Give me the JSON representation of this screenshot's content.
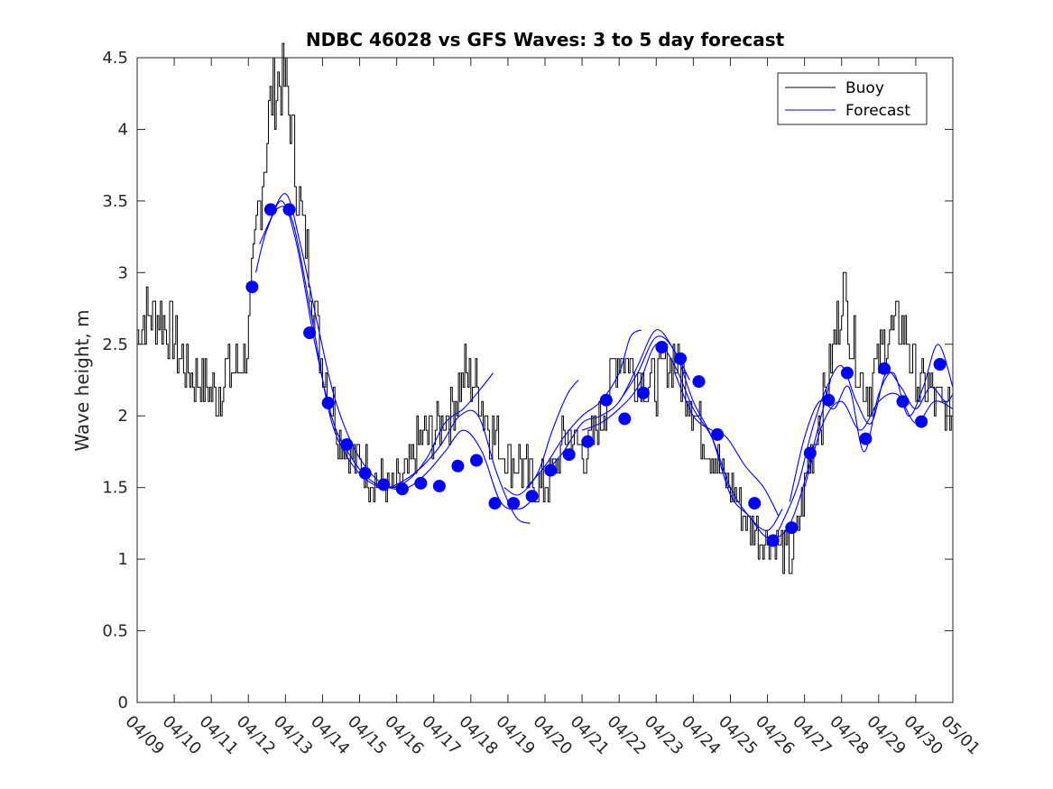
{
  "chart_data": {
    "type": "line",
    "title": "NDBC 46028 vs GFS Waves: 3 to 5 day forecast",
    "xlabel": "",
    "ylabel": "Wave height, m",
    "xlim": [
      "04/09",
      "05/01"
    ],
    "ylim": [
      0,
      4.5
    ],
    "x_ticks": [
      "04/09",
      "04/10",
      "04/11",
      "04/12",
      "04/13",
      "04/14",
      "04/15",
      "04/16",
      "04/17",
      "04/18",
      "04/19",
      "04/20",
      "04/21",
      "04/22",
      "04/23",
      "04/24",
      "04/25",
      "04/26",
      "04/27",
      "04/28",
      "04/29",
      "04/30",
      "05/01"
    ],
    "y_ticks": [
      "0",
      "0.5",
      "1",
      "1.5",
      "2",
      "2.5",
      "3",
      "3.5",
      "4",
      "4.5"
    ],
    "legend": {
      "position": "top-right",
      "entries": [
        {
          "label": "Buoy",
          "color": "#000000"
        },
        {
          "label": "Forecast",
          "color": "#0000ff"
        }
      ]
    },
    "colors": {
      "buoy": "#000000",
      "forecast": "#0000ff"
    },
    "x_unit_note_days_from": "04/09",
    "buoy_envelope": [
      [
        0.0,
        2.6
      ],
      [
        0.3,
        2.7
      ],
      [
        0.6,
        2.7
      ],
      [
        0.9,
        2.6
      ],
      [
        1.2,
        2.4
      ],
      [
        1.6,
        2.25
      ],
      [
        2.0,
        2.2
      ],
      [
        2.2,
        2.15
      ],
      [
        2.4,
        2.3
      ],
      [
        2.6,
        2.3
      ],
      [
        2.9,
        2.4
      ],
      [
        3.0,
        2.5
      ],
      [
        3.1,
        2.8
      ],
      [
        3.25,
        3.3
      ],
      [
        3.4,
        3.6
      ],
      [
        3.55,
        4.0
      ],
      [
        3.7,
        4.25
      ],
      [
        3.9,
        4.35
      ],
      [
        4.05,
        4.3
      ],
      [
        4.2,
        4.0
      ],
      [
        4.35,
        3.6
      ],
      [
        4.5,
        3.3
      ],
      [
        4.65,
        3.1
      ],
      [
        4.8,
        2.8
      ],
      [
        4.95,
        2.5
      ],
      [
        5.1,
        2.3
      ],
      [
        5.3,
        2.1
      ],
      [
        5.5,
        1.9
      ],
      [
        5.7,
        1.75
      ],
      [
        5.9,
        1.7
      ],
      [
        6.1,
        1.65
      ],
      [
        6.3,
        1.6
      ],
      [
        6.5,
        1.55
      ],
      [
        6.7,
        1.5
      ],
      [
        6.9,
        1.45
      ],
      [
        7.1,
        1.5
      ],
      [
        7.3,
        1.6
      ],
      [
        7.5,
        1.75
      ],
      [
        7.7,
        1.85
      ],
      [
        7.9,
        1.85
      ],
      [
        8.1,
        1.9
      ],
      [
        8.3,
        2.0
      ],
      [
        8.5,
        2.05
      ],
      [
        8.7,
        2.2
      ],
      [
        8.9,
        2.3
      ],
      [
        9.1,
        2.25
      ],
      [
        9.3,
        2.1
      ],
      [
        9.5,
        1.95
      ],
      [
        9.7,
        1.85
      ],
      [
        9.9,
        1.75
      ],
      [
        10.1,
        1.7
      ],
      [
        10.3,
        1.7
      ],
      [
        10.5,
        1.6
      ],
      [
        10.7,
        1.55
      ],
      [
        10.9,
        1.5
      ],
      [
        11.1,
        1.55
      ],
      [
        11.3,
        1.65
      ],
      [
        11.5,
        1.8
      ],
      [
        11.7,
        1.85
      ],
      [
        11.9,
        1.8
      ],
      [
        12.1,
        1.75
      ],
      [
        12.3,
        1.8
      ],
      [
        12.5,
        1.95
      ],
      [
        12.7,
        2.15
      ],
      [
        12.9,
        2.35
      ],
      [
        13.1,
        2.45
      ],
      [
        13.3,
        2.4
      ],
      [
        13.5,
        2.3
      ],
      [
        13.7,
        2.25
      ],
      [
        13.9,
        2.2
      ],
      [
        14.1,
        2.25
      ],
      [
        14.3,
        2.35
      ],
      [
        14.5,
        2.4
      ],
      [
        14.7,
        2.3
      ],
      [
        14.9,
        2.2
      ],
      [
        15.1,
        2.0
      ],
      [
        15.3,
        1.85
      ],
      [
        15.5,
        1.75
      ],
      [
        15.7,
        1.7
      ],
      [
        15.9,
        1.55
      ],
      [
        16.1,
        1.45
      ],
      [
        16.3,
        1.35
      ],
      [
        16.5,
        1.25
      ],
      [
        16.7,
        1.2
      ],
      [
        16.9,
        1.15
      ],
      [
        17.1,
        1.15
      ],
      [
        17.3,
        1.1
      ],
      [
        17.5,
        1.05
      ],
      [
        17.7,
        1.0
      ],
      [
        17.9,
        1.3
      ],
      [
        18.1,
        1.6
      ],
      [
        18.3,
        1.85
      ],
      [
        18.5,
        2.05
      ],
      [
        18.7,
        2.3
      ],
      [
        18.9,
        2.6
      ],
      [
        19.05,
        2.9
      ],
      [
        19.2,
        2.7
      ],
      [
        19.4,
        2.4
      ],
      [
        19.6,
        2.25
      ],
      [
        19.8,
        2.2
      ],
      [
        20.0,
        2.35
      ],
      [
        20.2,
        2.55
      ],
      [
        20.4,
        2.6
      ],
      [
        20.6,
        2.65
      ],
      [
        20.8,
        2.55
      ],
      [
        21.0,
        2.3
      ],
      [
        21.2,
        2.15
      ],
      [
        21.4,
        2.2
      ],
      [
        21.6,
        2.1
      ],
      [
        21.8,
        2.05
      ],
      [
        22.0,
        2.0
      ]
    ],
    "forecast_lines": [
      [
        [
          3.2,
          3.0
        ],
        [
          3.5,
          3.3
        ],
        [
          4.0,
          3.55
        ],
        [
          4.4,
          3.2
        ],
        [
          4.9,
          2.6
        ],
        [
          5.3,
          2.15
        ],
        [
          5.8,
          1.8
        ],
        [
          6.3,
          1.6
        ],
        [
          6.8,
          1.5
        ],
        [
          7.3,
          1.5
        ],
        [
          7.8,
          1.6
        ],
        [
          8.3,
          1.75
        ],
        [
          8.8,
          1.9
        ],
        [
          9.3,
          1.75
        ],
        [
          9.8,
          1.4
        ],
        [
          10.3,
          1.35
        ],
        [
          10.6,
          1.4
        ]
      ],
      [
        [
          3.3,
          3.2
        ],
        [
          3.8,
          3.45
        ],
        [
          4.2,
          3.35
        ],
        [
          4.7,
          2.7
        ],
        [
          5.2,
          2.0
        ],
        [
          5.7,
          1.7
        ],
        [
          6.2,
          1.55
        ],
        [
          6.7,
          1.5
        ],
        [
          7.2,
          1.55
        ],
        [
          7.7,
          1.65
        ],
        [
          8.2,
          1.8
        ],
        [
          8.7,
          2.0
        ],
        [
          9.2,
          2.0
        ],
        [
          9.7,
          1.6
        ],
        [
          10.2,
          1.3
        ],
        [
          10.6,
          1.25
        ]
      ],
      [
        [
          3.5,
          3.3
        ],
        [
          3.9,
          3.5
        ],
        [
          4.3,
          3.2
        ],
        [
          4.8,
          2.5
        ],
        [
          5.3,
          1.95
        ],
        [
          5.8,
          1.7
        ],
        [
          6.3,
          1.55
        ],
        [
          6.8,
          1.5
        ],
        [
          7.3,
          1.55
        ],
        [
          7.8,
          1.7
        ],
        [
          8.3,
          1.95
        ],
        [
          8.8,
          2.05
        ],
        [
          9.3,
          2.2
        ],
        [
          9.6,
          2.3
        ]
      ],
      [
        [
          9.9,
          1.5
        ],
        [
          10.3,
          1.45
        ],
        [
          10.8,
          1.6
        ],
        [
          11.2,
          1.9
        ],
        [
          11.6,
          2.15
        ],
        [
          11.9,
          2.25
        ]
      ],
      [
        [
          10.5,
          1.5
        ],
        [
          11.0,
          1.65
        ],
        [
          11.5,
          1.85
        ],
        [
          12.0,
          2.0
        ],
        [
          12.5,
          2.1
        ],
        [
          13.0,
          2.3
        ],
        [
          13.3,
          2.55
        ],
        [
          13.6,
          2.6
        ]
      ],
      [
        [
          11.0,
          1.6
        ],
        [
          11.5,
          1.75
        ],
        [
          12.0,
          1.95
        ],
        [
          12.5,
          2.0
        ],
        [
          13.0,
          2.1
        ],
        [
          13.5,
          2.35
        ],
        [
          14.0,
          2.6
        ],
        [
          14.5,
          2.45
        ],
        [
          14.9,
          2.25
        ]
      ],
      [
        [
          12.0,
          1.9
        ],
        [
          12.5,
          1.95
        ],
        [
          13.0,
          2.05
        ],
        [
          13.5,
          2.2
        ],
        [
          14.0,
          2.5
        ],
        [
          14.5,
          2.35
        ],
        [
          15.0,
          2.05
        ],
        [
          15.5,
          1.85
        ],
        [
          16.0,
          1.5
        ],
        [
          16.5,
          1.3
        ],
        [
          17.0,
          1.2
        ],
        [
          17.4,
          1.35
        ]
      ],
      [
        [
          13.0,
          2.1
        ],
        [
          13.5,
          2.3
        ],
        [
          14.0,
          2.55
        ],
        [
          14.5,
          2.45
        ],
        [
          15.0,
          2.1
        ],
        [
          15.5,
          1.85
        ],
        [
          16.0,
          1.45
        ],
        [
          16.5,
          1.3
        ],
        [
          17.0,
          1.15
        ],
        [
          17.5,
          1.2
        ],
        [
          17.9,
          1.45
        ],
        [
          18.3,
          1.85
        ],
        [
          18.7,
          2.25
        ]
      ],
      [
        [
          14.5,
          2.3
        ],
        [
          15.0,
          2.0
        ],
        [
          15.5,
          1.9
        ],
        [
          15.9,
          1.85
        ],
        [
          16.4,
          1.65
        ],
        [
          16.9,
          1.5
        ],
        [
          17.3,
          1.3
        ]
      ],
      [
        [
          17.3,
          1.2
        ],
        [
          17.8,
          1.5
        ],
        [
          18.2,
          1.9
        ],
        [
          18.6,
          2.2
        ],
        [
          19.0,
          2.35
        ],
        [
          19.4,
          2.1
        ],
        [
          19.8,
          1.95
        ],
        [
          20.2,
          2.3
        ],
        [
          20.6,
          2.2
        ],
        [
          21.0,
          2.05
        ],
        [
          21.4,
          2.2
        ],
        [
          21.8,
          2.1
        ],
        [
          22.0,
          2.15
        ]
      ],
      [
        [
          17.6,
          1.4
        ],
        [
          18.0,
          1.85
        ],
        [
          18.4,
          2.1
        ],
        [
          18.8,
          2.05
        ],
        [
          19.2,
          2.2
        ],
        [
          19.6,
          1.75
        ],
        [
          20.0,
          2.15
        ],
        [
          20.4,
          2.3
        ],
        [
          20.8,
          2.0
        ],
        [
          21.2,
          2.2
        ],
        [
          21.6,
          2.5
        ],
        [
          22.0,
          2.2
        ]
      ],
      [
        [
          18.0,
          1.5
        ],
        [
          18.5,
          1.95
        ],
        [
          19.0,
          2.1
        ],
        [
          19.5,
          1.9
        ],
        [
          20.0,
          2.1
        ],
        [
          20.5,
          2.15
        ],
        [
          21.0,
          1.95
        ],
        [
          21.5,
          2.1
        ],
        [
          22.0,
          2.05
        ]
      ]
    ],
    "forecast_points": [
      [
        3.1,
        2.9
      ],
      [
        3.6,
        3.44
      ],
      [
        4.1,
        3.44
      ],
      [
        4.65,
        2.58
      ],
      [
        5.15,
        2.09
      ],
      [
        5.65,
        1.8
      ],
      [
        6.15,
        1.6
      ],
      [
        6.65,
        1.52
      ],
      [
        7.15,
        1.49
      ],
      [
        7.65,
        1.53
      ],
      [
        8.15,
        1.51
      ],
      [
        8.65,
        1.65
      ],
      [
        9.15,
        1.69
      ],
      [
        9.65,
        1.39
      ],
      [
        10.15,
        1.39
      ],
      [
        10.65,
        1.44
      ],
      [
        11.15,
        1.62
      ],
      [
        11.65,
        1.73
      ],
      [
        12.15,
        1.82
      ],
      [
        12.65,
        2.11
      ],
      [
        13.15,
        1.98
      ],
      [
        13.65,
        2.16
      ],
      [
        14.15,
        2.48
      ],
      [
        14.65,
        2.4
      ],
      [
        15.15,
        2.24
      ],
      [
        15.65,
        1.87
      ],
      [
        16.65,
        1.39
      ],
      [
        17.15,
        1.13
      ],
      [
        17.65,
        1.22
      ],
      [
        18.15,
        1.74
      ],
      [
        18.65,
        2.11
      ],
      [
        19.15,
        2.3
      ],
      [
        19.65,
        1.84
      ],
      [
        20.15,
        2.33
      ],
      [
        20.65,
        2.1
      ],
      [
        21.15,
        1.96
      ],
      [
        21.65,
        2.36
      ]
    ]
  }
}
